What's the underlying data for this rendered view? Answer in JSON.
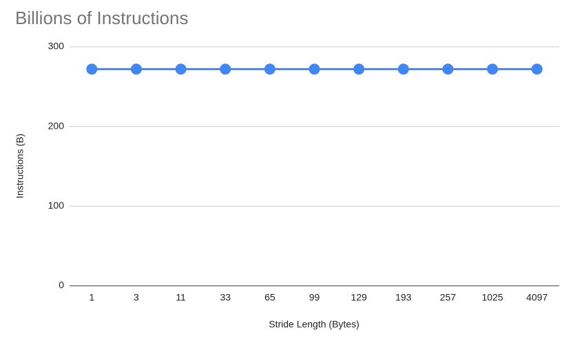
{
  "chart_data": {
    "type": "line",
    "title": "Billions of Instructions",
    "x_label": "Stride Length (Bytes)",
    "y_label": "Instructions (B)",
    "categories": [
      "1",
      "3",
      "11",
      "33",
      "65",
      "99",
      "129",
      "193",
      "257",
      "1025",
      "4097"
    ],
    "series": [
      {
        "name": "Instructions (B)",
        "color": "#4285f4",
        "values": [
          272,
          272,
          272,
          272,
          272,
          272,
          272,
          272,
          272,
          272,
          272
        ]
      }
    ],
    "ylim": [
      0,
      300
    ],
    "yticks": [
      0,
      100,
      200,
      300
    ],
    "grid": true
  }
}
